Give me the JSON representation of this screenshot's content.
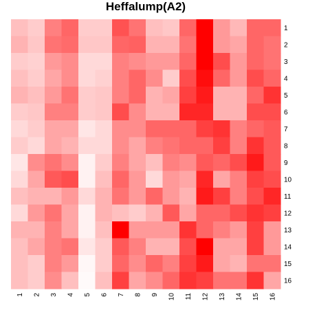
{
  "chart_data": {
    "type": "heatmap",
    "title": "Heffalump(A2)",
    "xlabel": "",
    "ylabel": "",
    "x_labels": [
      "1",
      "2",
      "3",
      "4",
      "5",
      "6",
      "7",
      "8",
      "9",
      "10",
      "11",
      "12",
      "13",
      "14",
      "15",
      "16"
    ],
    "y_labels": [
      "1",
      "2",
      "3",
      "4",
      "5",
      "6",
      "7",
      "8",
      "9",
      "10",
      "11",
      "12",
      "13",
      "14",
      "15",
      "16"
    ],
    "value_range": [
      0,
      1
    ],
    "color_low": "#ffffff",
    "color_high": "#ff0000",
    "grid": false,
    "legend": "none",
    "values": [
      [
        0.25,
        0.2,
        0.5,
        0.6,
        0.2,
        0.2,
        0.68,
        0.55,
        0.25,
        0.22,
        0.6,
        1.0,
        0.4,
        0.28,
        0.6,
        0.6
      ],
      [
        0.3,
        0.22,
        0.55,
        0.58,
        0.22,
        0.22,
        0.6,
        0.62,
        0.3,
        0.3,
        0.55,
        1.0,
        0.4,
        0.35,
        0.6,
        0.55
      ],
      [
        0.2,
        0.18,
        0.4,
        0.45,
        0.15,
        0.15,
        0.5,
        0.45,
        0.4,
        0.4,
        0.6,
        1.0,
        0.7,
        0.4,
        0.6,
        0.55
      ],
      [
        0.25,
        0.2,
        0.35,
        0.45,
        0.15,
        0.18,
        0.5,
        0.6,
        0.45,
        0.2,
        0.7,
        0.95,
        0.6,
        0.4,
        0.7,
        0.6
      ],
      [
        0.3,
        0.25,
        0.4,
        0.55,
        0.2,
        0.22,
        0.5,
        0.6,
        0.3,
        0.35,
        0.75,
        0.9,
        0.3,
        0.3,
        0.6,
        0.8
      ],
      [
        0.2,
        0.22,
        0.5,
        0.5,
        0.2,
        0.22,
        0.7,
        0.45,
        0.3,
        0.3,
        0.85,
        0.85,
        0.3,
        0.3,
        0.7,
        0.7
      ],
      [
        0.15,
        0.2,
        0.35,
        0.35,
        0.1,
        0.15,
        0.45,
        0.45,
        0.6,
        0.6,
        0.6,
        0.75,
        0.8,
        0.5,
        0.6,
        0.65
      ],
      [
        0.2,
        0.15,
        0.35,
        0.3,
        0.15,
        0.15,
        0.45,
        0.35,
        0.5,
        0.55,
        0.6,
        0.6,
        0.75,
        0.5,
        0.8,
        0.65
      ],
      [
        0.1,
        0.45,
        0.55,
        0.45,
        0.05,
        0.2,
        0.5,
        0.35,
        0.25,
        0.5,
        0.45,
        0.65,
        0.6,
        0.7,
        0.9,
        0.65
      ],
      [
        0.15,
        0.35,
        0.65,
        0.7,
        0.05,
        0.25,
        0.6,
        0.4,
        0.15,
        0.4,
        0.35,
        0.85,
        0.35,
        0.5,
        0.75,
        0.7
      ],
      [
        0.25,
        0.3,
        0.3,
        0.4,
        0.15,
        0.3,
        0.55,
        0.4,
        0.6,
        0.4,
        0.3,
        0.9,
        0.75,
        0.5,
        0.7,
        0.85
      ],
      [
        0.15,
        0.4,
        0.55,
        0.35,
        0.05,
        0.3,
        0.25,
        0.2,
        0.3,
        0.65,
        0.35,
        0.6,
        0.6,
        0.7,
        0.8,
        0.75
      ],
      [
        0.3,
        0.3,
        0.5,
        0.35,
        0.05,
        0.25,
        1.0,
        0.4,
        0.4,
        0.4,
        0.8,
        0.6,
        0.5,
        0.4,
        0.75,
        0.4
      ],
      [
        0.25,
        0.35,
        0.5,
        0.55,
        0.1,
        0.2,
        0.65,
        0.5,
        0.3,
        0.3,
        0.7,
        1.0,
        0.35,
        0.35,
        0.75,
        0.4
      ],
      [
        0.25,
        0.2,
        0.5,
        0.4,
        0.03,
        0.2,
        0.6,
        0.45,
        0.6,
        0.5,
        0.75,
        0.9,
        0.35,
        0.3,
        0.55,
        0.55
      ],
      [
        0.25,
        0.2,
        0.45,
        0.25,
        0.02,
        0.25,
        0.75,
        0.35,
        0.45,
        0.6,
        0.8,
        0.75,
        0.55,
        0.55,
        0.8,
        0.35
      ]
    ]
  }
}
